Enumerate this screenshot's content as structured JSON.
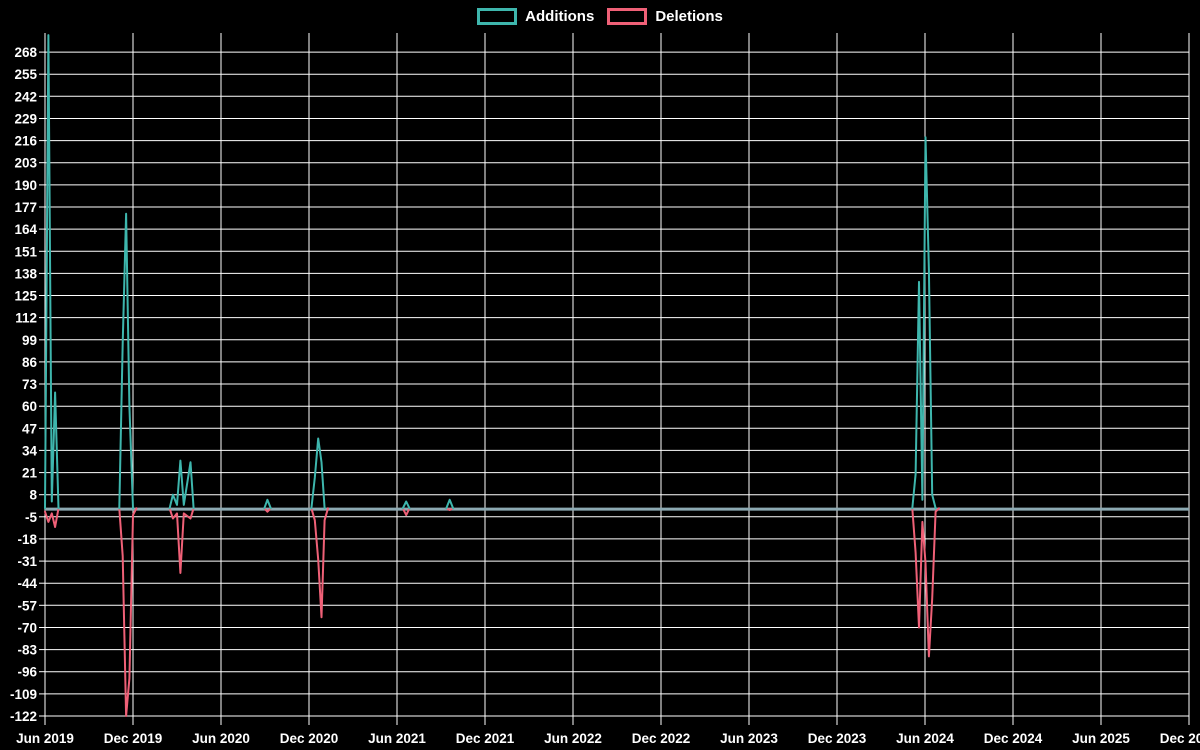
{
  "legend": {
    "additions_label": "Additions",
    "deletions_label": "Deletions"
  },
  "colors": {
    "background": "#000000",
    "grid": "#ffffff",
    "text": "#ffffff",
    "additions": "#3eb6ad",
    "deletions": "#ef6077",
    "baseline": "#8ca9b2"
  },
  "chart_data": {
    "type": "line",
    "title": "",
    "xlabel": "",
    "ylabel": "",
    "grid": true,
    "legend_position": "top-center",
    "baseline_value": 0,
    "x_axis": {
      "tick_labels": [
        "Jun 2019",
        "Dec 2019",
        "Jun 2020",
        "Dec 2020",
        "Jun 2021",
        "Dec 2021",
        "Jun 2022",
        "Dec 2022",
        "Jun 2023",
        "Dec 2023",
        "Jun 2024",
        "Dec 2024",
        "Jun 2025",
        "Dec 2025"
      ]
    },
    "y_axis": {
      "tick_labels": [
        268,
        255,
        242,
        229,
        216,
        203,
        190,
        177,
        164,
        151,
        138,
        125,
        112,
        99,
        86,
        73,
        60,
        47,
        34,
        21,
        8,
        -5,
        -18,
        -31,
        -44,
        -57,
        -70,
        -83,
        -96,
        -109,
        -122
      ],
      "tick_step": 13,
      "ylim": [
        -122,
        279
      ]
    },
    "series": [
      {
        "name": "Additions",
        "color": "#3eb6ad",
        "clusters": [
          [
            [
              "2019-06-01",
              0
            ],
            [
              "2019-06-08",
              278
            ],
            [
              "2019-06-15",
              4
            ],
            [
              "2019-06-22",
              68
            ],
            [
              "2019-06-29",
              0
            ]
          ],
          [
            [
              "2019-11-03",
              0
            ],
            [
              "2019-11-10",
              97
            ],
            [
              "2019-11-17",
              173
            ],
            [
              "2019-11-24",
              60
            ],
            [
              "2019-12-01",
              0
            ]
          ],
          [
            [
              "2020-02-16",
              0
            ],
            [
              "2020-02-23",
              8
            ],
            [
              "2020-03-01",
              2
            ],
            [
              "2020-03-08",
              28
            ],
            [
              "2020-03-15",
              2
            ],
            [
              "2020-03-29",
              27
            ],
            [
              "2020-04-05",
              0
            ]
          ],
          [
            [
              "2020-08-30",
              0
            ],
            [
              "2020-09-06",
              5
            ],
            [
              "2020-09-13",
              0
            ]
          ],
          [
            [
              "2020-12-06",
              0
            ],
            [
              "2020-12-13",
              18
            ],
            [
              "2020-12-20",
              41
            ],
            [
              "2020-12-27",
              27
            ],
            [
              "2021-01-03",
              0
            ]
          ],
          [
            [
              "2021-06-13",
              0
            ],
            [
              "2021-06-20",
              4
            ],
            [
              "2021-06-27",
              0
            ]
          ],
          [
            [
              "2021-09-12",
              0
            ],
            [
              "2021-09-19",
              5
            ],
            [
              "2021-09-26",
              0
            ]
          ],
          [
            [
              "2024-05-05",
              0
            ],
            [
              "2024-05-12",
              20
            ],
            [
              "2024-05-19",
              133
            ],
            [
              "2024-05-26",
              5
            ],
            [
              "2024-06-02",
              218
            ],
            [
              "2024-06-09",
              140
            ],
            [
              "2024-06-16",
              8
            ],
            [
              "2024-06-23",
              0
            ]
          ]
        ]
      },
      {
        "name": "Deletions",
        "color": "#ef6077",
        "clusters": [
          [
            [
              "2019-06-01",
              -2
            ],
            [
              "2019-06-08",
              -8
            ],
            [
              "2019-06-15",
              -3
            ],
            [
              "2019-06-22",
              -11
            ],
            [
              "2019-06-29",
              0
            ]
          ],
          [
            [
              "2019-11-03",
              0
            ],
            [
              "2019-11-10",
              -28
            ],
            [
              "2019-11-17",
              -122
            ],
            [
              "2019-11-24",
              -100
            ],
            [
              "2019-12-01",
              -4
            ],
            [
              "2019-12-08",
              0
            ]
          ],
          [
            [
              "2020-02-16",
              0
            ],
            [
              "2020-02-23",
              -6
            ],
            [
              "2020-03-01",
              -3
            ],
            [
              "2020-03-08",
              -38
            ],
            [
              "2020-03-15",
              -3
            ],
            [
              "2020-03-29",
              -6
            ],
            [
              "2020-04-05",
              0
            ]
          ],
          [
            [
              "2020-08-30",
              0
            ],
            [
              "2020-09-06",
              -2
            ],
            [
              "2020-09-13",
              0
            ]
          ],
          [
            [
              "2020-12-06",
              0
            ],
            [
              "2020-12-13",
              -7
            ],
            [
              "2020-12-20",
              -30
            ],
            [
              "2020-12-27",
              -64
            ],
            [
              "2021-01-03",
              -7
            ],
            [
              "2021-01-10",
              0
            ]
          ],
          [
            [
              "2021-06-13",
              0
            ],
            [
              "2021-06-20",
              -4
            ],
            [
              "2021-06-27",
              0
            ]
          ],
          [
            [
              "2021-09-12",
              0
            ],
            [
              "2021-09-19",
              -1
            ],
            [
              "2021-09-26",
              0
            ]
          ],
          [
            [
              "2024-05-05",
              0
            ],
            [
              "2024-05-12",
              -26
            ],
            [
              "2024-05-19",
              -70
            ],
            [
              "2024-05-26",
              -8
            ],
            [
              "2024-06-02",
              -32
            ],
            [
              "2024-06-09",
              -87
            ],
            [
              "2024-06-16",
              -53
            ],
            [
              "2024-06-23",
              -2
            ],
            [
              "2024-06-30",
              0
            ]
          ]
        ]
      }
    ]
  }
}
